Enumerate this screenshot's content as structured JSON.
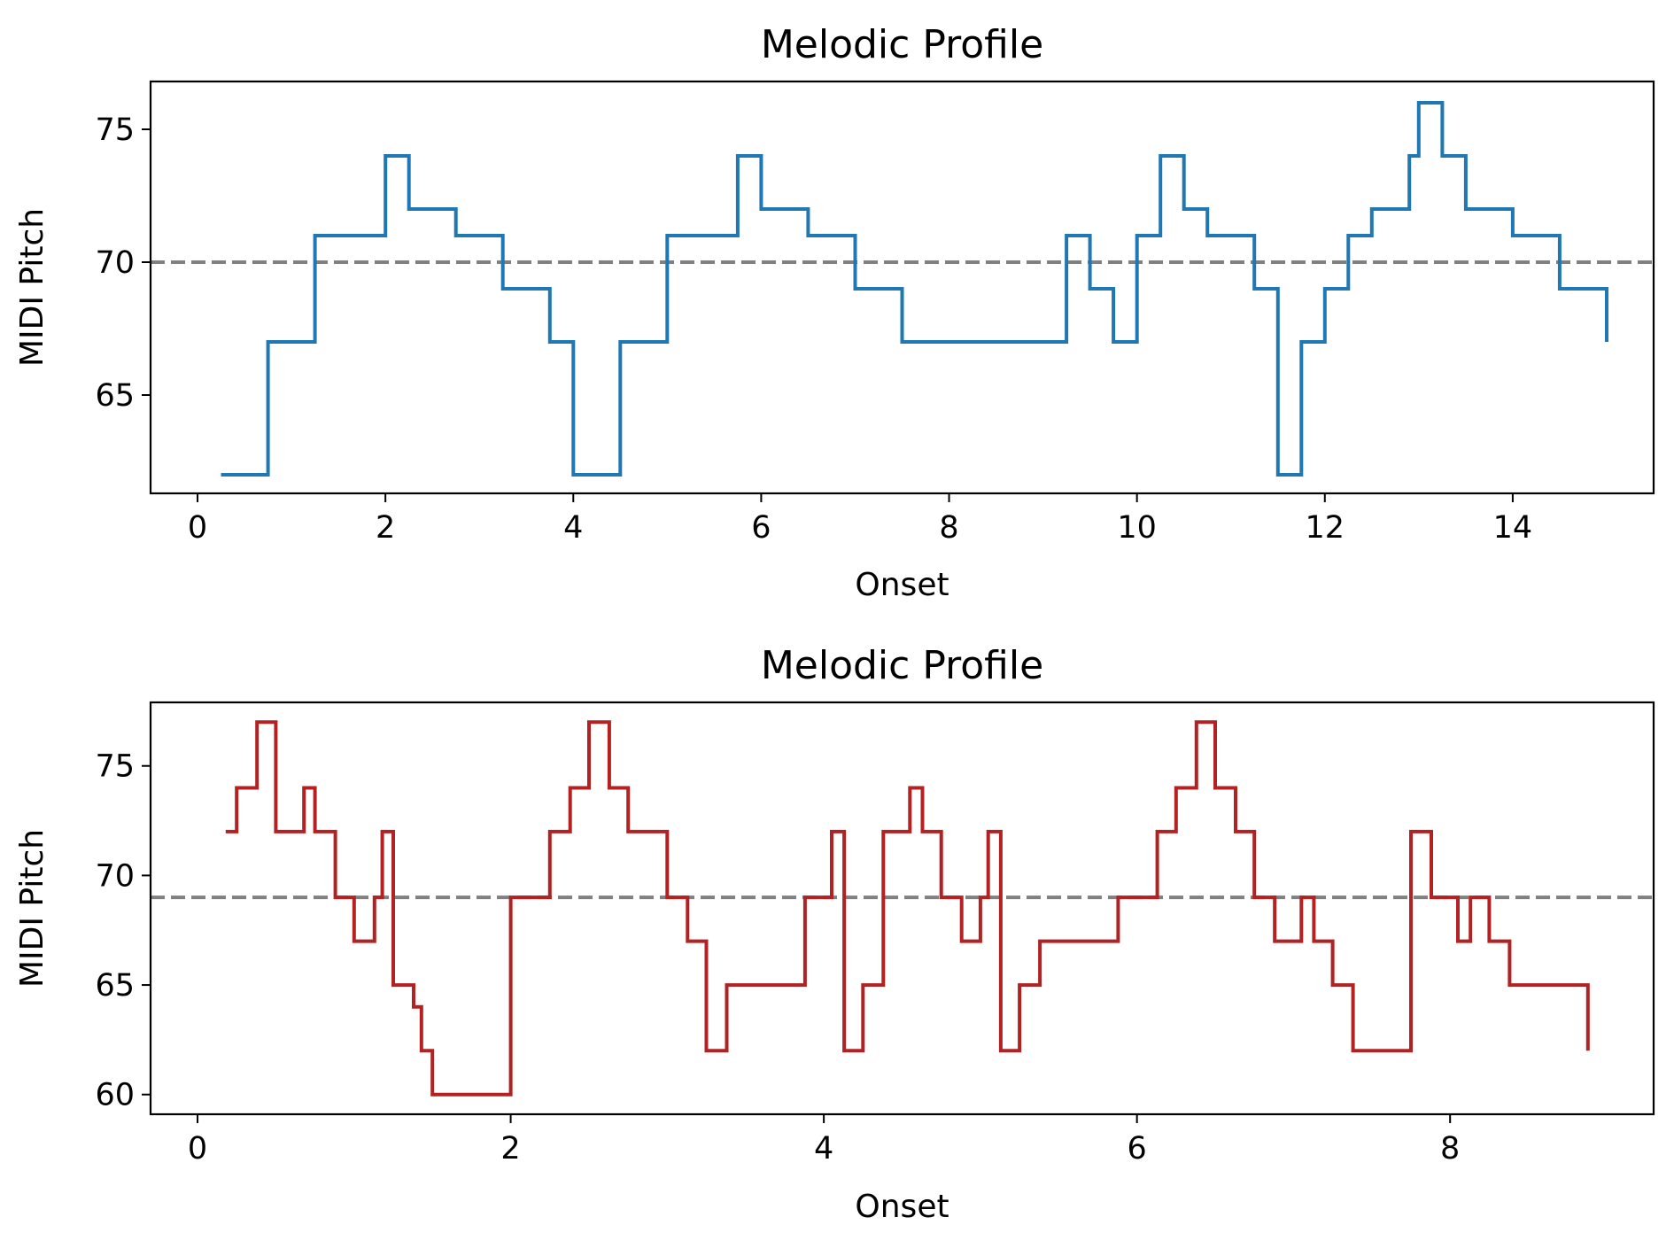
{
  "chart_data": [
    {
      "type": "line",
      "step": "post",
      "title": "Melodic Profile",
      "xlabel": "Onset",
      "ylabel": "MIDI Pitch",
      "xlim": [
        -0.5,
        15.5
      ],
      "ylim": [
        61.3,
        76.8
      ],
      "xticks": [
        0,
        2,
        4,
        6,
        8,
        10,
        12,
        14
      ],
      "yticks": [
        65,
        70,
        75
      ],
      "grid": false,
      "reference_line": {
        "y": 70,
        "style": "dashed",
        "color": "#808080"
      },
      "series": [
        {
          "color": "#1f77b4",
          "x": [
            0.25,
            0.75,
            1.25,
            2.0,
            2.25,
            2.75,
            3.25,
            3.75,
            4.0,
            4.5,
            5.0,
            5.75,
            6.0,
            6.5,
            7.0,
            7.5,
            9.25,
            9.5,
            9.75,
            10.0,
            10.25,
            10.5,
            10.75,
            11.25,
            11.5,
            11.75,
            12.0,
            12.25,
            12.5,
            12.9,
            13.0,
            13.25,
            13.5,
            14.0,
            14.5,
            15.0
          ],
          "y": [
            62,
            67,
            71,
            74,
            72,
            71,
            69,
            67,
            62,
            67,
            71,
            74,
            72,
            71,
            69,
            67,
            71,
            69,
            67,
            71,
            74,
            72,
            71,
            69,
            62,
            67,
            69,
            71,
            72,
            74,
            76,
            74,
            72,
            71,
            69,
            67
          ]
        }
      ]
    },
    {
      "type": "line",
      "step": "post",
      "title": "Melodic Profile",
      "xlabel": "Onset",
      "ylabel": "MIDI Pitch",
      "xlim": [
        -0.3,
        9.3
      ],
      "ylim": [
        59.1,
        77.9
      ],
      "xticks": [
        0,
        2,
        4,
        6,
        8
      ],
      "yticks": [
        60,
        65,
        70,
        75
      ],
      "grid": false,
      "reference_line": {
        "y": 69,
        "style": "dashed",
        "color": "#808080"
      },
      "series": [
        {
          "color": "#b22222",
          "x": [
            0.18,
            0.25,
            0.38,
            0.5,
            0.68,
            0.75,
            0.88,
            1.0,
            1.13,
            1.18,
            1.25,
            1.38,
            1.43,
            1.5,
            2.0,
            2.25,
            2.38,
            2.5,
            2.63,
            2.75,
            3.0,
            3.13,
            3.25,
            3.38,
            3.88,
            4.05,
            4.13,
            4.25,
            4.38,
            4.55,
            4.63,
            4.75,
            4.88,
            5.0,
            5.05,
            5.13,
            5.25,
            5.38,
            5.88,
            6.13,
            6.25,
            6.38,
            6.5,
            6.63,
            6.75,
            6.88,
            7.05,
            7.13,
            7.25,
            7.38,
            7.75,
            7.88,
            8.05,
            8.13,
            8.25,
            8.38,
            8.88
          ],
          "y": [
            72,
            74,
            77,
            72,
            74,
            72,
            69,
            67,
            69,
            72,
            65,
            64,
            62,
            60,
            69,
            72,
            74,
            77,
            74,
            72,
            69,
            67,
            62,
            65,
            69,
            72,
            62,
            65,
            72,
            74,
            72,
            69,
            67,
            69,
            72,
            62,
            65,
            67,
            69,
            72,
            74,
            77,
            74,
            72,
            69,
            67,
            69,
            67,
            65,
            62,
            72,
            69,
            67,
            69,
            67,
            65,
            62
          ]
        }
      ]
    }
  ]
}
